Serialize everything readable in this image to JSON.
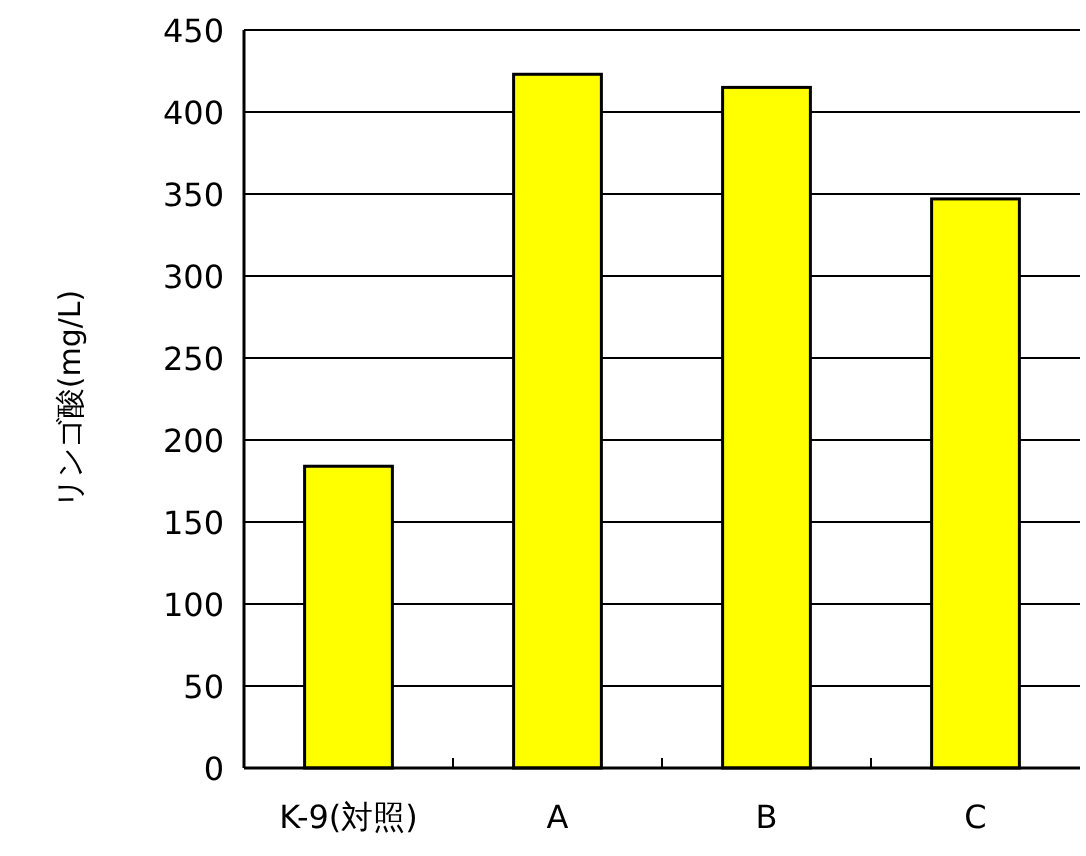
{
  "chart_data": {
    "type": "bar",
    "ylabel": "リンゴ酸(mg/L)",
    "categories": [
      "K-9(対照)",
      "A",
      "B",
      "C"
    ],
    "values": [
      184,
      423,
      415,
      347
    ],
    "color": "#ffff00",
    "ylim": [
      0,
      450
    ],
    "yticks": [
      0,
      50,
      100,
      150,
      200,
      250,
      300,
      350,
      400,
      450
    ],
    "grid": "y"
  }
}
